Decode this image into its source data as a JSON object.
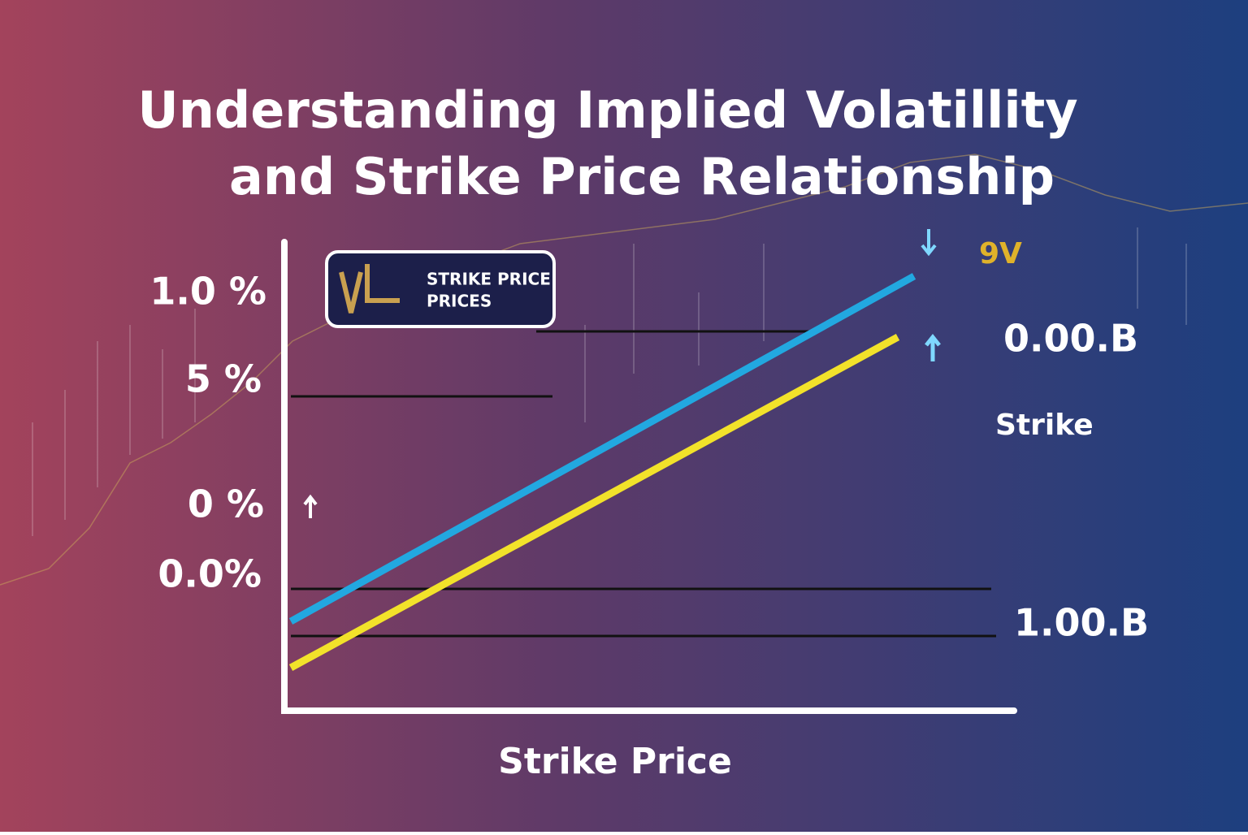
{
  "title": [
    "Understanding Implied Volatillity",
    "and Strike Price Relationship"
  ],
  "y_labels": [
    "1.0 %",
    "5 %",
    "0 %",
    "0.0%"
  ],
  "badge": [
    "STRIKE PRICE",
    "PRICES"
  ],
  "right_labels": [
    "9V",
    "0.00.B",
    "Strike",
    "1.00.B"
  ],
  "x_label": "Strike Price"
}
